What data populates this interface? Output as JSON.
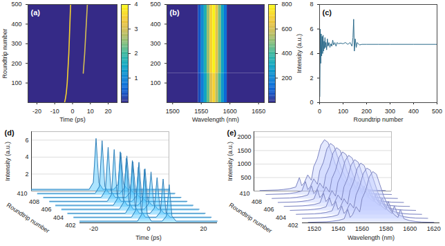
{
  "chart_data": [
    {
      "type": "heatmap",
      "label": "(a)",
      "xlabel": "Time (ps)",
      "ylabel": "Roundtrip number",
      "xlim": [
        -25,
        25
      ],
      "xticks": [
        -20,
        -10,
        0,
        10,
        20
      ],
      "ylim": [
        0,
        500
      ],
      "yticks": [
        100,
        200,
        300,
        400,
        500
      ],
      "cells": [
        {
          "x1": -25,
          "x2": 25,
          "y1": 0,
          "y2": 500,
          "value": 0
        }
      ],
      "tracks": [
        {
          "x": [
            -4.5,
            -4,
            -3.5,
            -3,
            -2.7,
            -2.4,
            -2.1,
            -1.9,
            -1.7,
            -1.5,
            -1.3,
            -1.1
          ],
          "y": [
            0,
            20,
            50,
            100,
            150,
            200,
            250,
            300,
            350,
            400,
            450,
            500
          ],
          "values": [
            3.5,
            3.5,
            3.5,
            3.5,
            3.5,
            3.5,
            3.5,
            3.5,
            3.5,
            3.5,
            3.5,
            3.5
          ]
        },
        {
          "x": [
            6.0,
            6.4,
            6.8,
            7.1,
            7.4,
            7.7,
            8.0,
            8.3
          ],
          "y": [
            150,
            200,
            250,
            300,
            350,
            400,
            450,
            500
          ],
          "values": [
            3,
            3,
            3,
            3,
            3,
            3,
            3,
            3
          ]
        }
      ],
      "colorbar": {
        "range": [
          0,
          4
        ],
        "ticks": [
          1,
          2,
          3,
          4
        ],
        "colors": [
          "#352a87",
          "#0363e1",
          "#1485d4",
          "#06a7c6",
          "#38b99e",
          "#92bf73",
          "#d9ba56",
          "#fcce2e",
          "#f9fb0e"
        ]
      }
    },
    {
      "type": "heatmap",
      "label": "(b)",
      "xlabel": "Wavelength (nm)",
      "xlim": [
        1490,
        1660
      ],
      "xticks": [
        1500,
        1550,
        1600,
        1650
      ],
      "ylim": [
        0,
        500
      ],
      "yticks": [
        100,
        200,
        300,
        400,
        500
      ],
      "x_edges": [
        1490,
        1545,
        1550,
        1555,
        1560,
        1565,
        1570,
        1575,
        1580,
        1585,
        1590,
        1595,
        1660
      ],
      "y_edges": [
        0,
        150,
        500
      ],
      "values": [
        [
          0,
          60,
          180,
          300,
          450,
          620,
          700,
          560,
          420,
          260,
          120,
          0
        ],
        [
          0,
          80,
          220,
          350,
          520,
          700,
          780,
          640,
          480,
          300,
          150,
          0
        ]
      ],
      "colorbar": {
        "range": [
          0,
          800
        ],
        "ticks": [
          200,
          400,
          600,
          800
        ],
        "colors": [
          "#352a87",
          "#0363e1",
          "#1485d4",
          "#06a7c6",
          "#38b99e",
          "#92bf73",
          "#d9ba56",
          "#fcce2e",
          "#f9fb0e"
        ]
      }
    },
    {
      "type": "line",
      "label": "(c)",
      "xlabel": "Roundtrip number",
      "ylabel": "Intensity (a.u.)",
      "xlim": [
        0,
        500
      ],
      "xticks": [
        0,
        100,
        200,
        300,
        400,
        500
      ],
      "ylim": [
        0,
        8
      ],
      "yticks": [
        0,
        2,
        4,
        6,
        8
      ],
      "x": [
        1,
        3,
        5,
        7,
        9,
        11,
        13,
        15,
        17,
        19,
        21,
        23,
        25,
        27,
        30,
        33,
        36,
        40,
        44,
        48,
        52,
        56,
        60,
        65,
        70,
        75,
        80,
        90,
        100,
        110,
        120,
        130,
        138,
        142,
        145,
        148,
        152,
        156,
        160,
        170,
        180,
        200,
        250,
        300,
        400,
        500
      ],
      "values": [
        0.5,
        6.0,
        3.2,
        5.6,
        3.8,
        5.4,
        4.0,
        5.5,
        4.2,
        5.0,
        4.4,
        5.3,
        4.5,
        4.9,
        4.3,
        5.2,
        4.6,
        4.9,
        4.5,
        4.8,
        4.6,
        5.1,
        4.7,
        4.9,
        4.6,
        4.9,
        4.8,
        4.85,
        4.8,
        4.9,
        4.75,
        4.9,
        4.6,
        5.3,
        6.8,
        4.2,
        5.2,
        4.5,
        4.9,
        4.7,
        4.75,
        4.75,
        4.75,
        4.75,
        4.75,
        4.75
      ],
      "color": "#2b6a8a"
    },
    {
      "type": "waterfall",
      "label": "(d)",
      "xlabel": "Time (ps)",
      "ylabel": "Intensity (a.u.)",
      "zlabel": "Roundtrip number",
      "xlim": [
        -25,
        25
      ],
      "xticks": [
        -20,
        0,
        20
      ],
      "ylim": [
        0,
        7
      ],
      "yticks": [
        2,
        4,
        6
      ],
      "zlim": [
        402,
        410
      ],
      "zticks": [
        402,
        404,
        406,
        408,
        410
      ],
      "x": [
        -25,
        -4,
        -2.5,
        -1.5,
        -0.5,
        1,
        5,
        6.5,
        7.5,
        8.5,
        10,
        25
      ],
      "series": [
        {
          "roundtrip": 402,
          "values": [
            0.2,
            0.2,
            1.0,
            6.3,
            1.0,
            0.2,
            0.2,
            0.8,
            4.5,
            0.8,
            0.2,
            0.2
          ]
        },
        {
          "roundtrip": 403,
          "values": [
            0.2,
            0.2,
            1.0,
            6.1,
            1.0,
            0.2,
            0.2,
            0.8,
            4.7,
            0.8,
            0.2,
            0.2
          ]
        },
        {
          "roundtrip": 404,
          "values": [
            0.2,
            0.2,
            1.0,
            6.4,
            1.0,
            0.2,
            0.2,
            0.8,
            4.4,
            0.8,
            0.2,
            0.2
          ]
        },
        {
          "roundtrip": 405,
          "values": [
            0.2,
            0.2,
            1.0,
            6.2,
            1.0,
            0.2,
            0.2,
            0.8,
            4.6,
            0.8,
            0.2,
            0.2
          ]
        },
        {
          "roundtrip": 406,
          "values": [
            0.2,
            0.2,
            1.0,
            6.5,
            1.0,
            0.2,
            0.2,
            0.8,
            4.5,
            0.8,
            0.2,
            0.2
          ]
        },
        {
          "roundtrip": 407,
          "values": [
            0.2,
            0.2,
            1.0,
            6.3,
            1.0,
            0.2,
            0.2,
            0.8,
            4.8,
            0.8,
            0.2,
            0.2
          ]
        },
        {
          "roundtrip": 408,
          "values": [
            0.2,
            0.2,
            1.0,
            6.1,
            1.0,
            0.2,
            0.2,
            0.8,
            4.4,
            0.8,
            0.2,
            0.2
          ]
        },
        {
          "roundtrip": 409,
          "values": [
            0.2,
            0.2,
            1.0,
            6.4,
            1.0,
            0.2,
            0.2,
            0.8,
            4.6,
            0.8,
            0.2,
            0.2
          ]
        },
        {
          "roundtrip": 410,
          "values": [
            0.2,
            0.2,
            1.0,
            6.2,
            1.0,
            0.2,
            0.2,
            0.8,
            4.5,
            0.8,
            0.2,
            0.2
          ]
        }
      ],
      "color": "#2f7fb8"
    },
    {
      "type": "waterfall",
      "label": "(e)",
      "xlabel": "Wavelength (nm)",
      "ylabel": "Intensity (a.u.)",
      "zlabel": "Roundtrip number",
      "xlim": [
        1510,
        1625
      ],
      "xticks": [
        1520,
        1540,
        1560,
        1580,
        1600,
        1620
      ],
      "ylim": [
        0,
        2200
      ],
      "yticks": [
        500,
        1000,
        1500,
        2000
      ],
      "zlim": [
        402,
        410
      ],
      "zticks": [
        402,
        404,
        406,
        408,
        410
      ],
      "x": [
        1515,
        1530,
        1535,
        1540,
        1545,
        1548,
        1550,
        1552,
        1555,
        1558,
        1560,
        1563,
        1566,
        1569,
        1572,
        1575,
        1578,
        1581,
        1584,
        1587,
        1590,
        1592,
        1595,
        1600,
        1605,
        1610,
        1620
      ],
      "series": [
        {
          "roundtrip": 402,
          "values": [
            20,
            40,
            60,
            90,
            150,
            500,
            200,
            300,
            600,
            400,
            900,
            1200,
            1700,
            1900,
            1800,
            1400,
            1000,
            700,
            450,
            300,
            200,
            500,
            150,
            80,
            50,
            30,
            20
          ]
        },
        {
          "roundtrip": 403,
          "values": [
            20,
            40,
            60,
            90,
            150,
            480,
            200,
            300,
            580,
            400,
            880,
            1200,
            1680,
            1880,
            1800,
            1400,
            1000,
            700,
            450,
            300,
            200,
            480,
            150,
            80,
            50,
            30,
            20
          ]
        },
        {
          "roundtrip": 404,
          "values": [
            20,
            40,
            60,
            90,
            150,
            500,
            200,
            300,
            600,
            400,
            900,
            1220,
            1720,
            1920,
            1820,
            1400,
            1000,
            700,
            450,
            300,
            200,
            500,
            150,
            80,
            50,
            30,
            20
          ]
        },
        {
          "roundtrip": 405,
          "values": [
            20,
            40,
            60,
            90,
            150,
            490,
            200,
            300,
            590,
            400,
            890,
            1200,
            1700,
            1900,
            1800,
            1400,
            1000,
            700,
            450,
            300,
            200,
            490,
            150,
            80,
            50,
            30,
            20
          ]
        },
        {
          "roundtrip": 406,
          "values": [
            20,
            40,
            60,
            90,
            150,
            510,
            200,
            300,
            610,
            400,
            910,
            1210,
            1710,
            1910,
            1810,
            1400,
            1000,
            700,
            450,
            300,
            200,
            510,
            150,
            80,
            50,
            30,
            20
          ]
        },
        {
          "roundtrip": 407,
          "values": [
            20,
            40,
            60,
            90,
            150,
            500,
            200,
            300,
            600,
            400,
            900,
            1200,
            1690,
            1890,
            1790,
            1400,
            1000,
            700,
            450,
            300,
            200,
            500,
            150,
            80,
            50,
            30,
            20
          ]
        },
        {
          "roundtrip": 408,
          "values": [
            20,
            40,
            60,
            90,
            150,
            490,
            200,
            300,
            590,
            400,
            890,
            1190,
            1700,
            1900,
            1800,
            1400,
            1000,
            700,
            450,
            300,
            200,
            490,
            150,
            80,
            50,
            30,
            20
          ]
        },
        {
          "roundtrip": 409,
          "values": [
            20,
            40,
            60,
            90,
            150,
            500,
            200,
            300,
            600,
            400,
            900,
            1210,
            1710,
            1910,
            1810,
            1400,
            1000,
            700,
            450,
            300,
            200,
            500,
            150,
            80,
            50,
            30,
            20
          ]
        },
        {
          "roundtrip": 410,
          "values": [
            20,
            40,
            60,
            90,
            150,
            500,
            200,
            300,
            600,
            400,
            900,
            1200,
            1700,
            1900,
            1800,
            1400,
            1000,
            700,
            450,
            300,
            200,
            500,
            150,
            80,
            50,
            30,
            20
          ]
        }
      ],
      "color": "#7f86c0"
    }
  ]
}
